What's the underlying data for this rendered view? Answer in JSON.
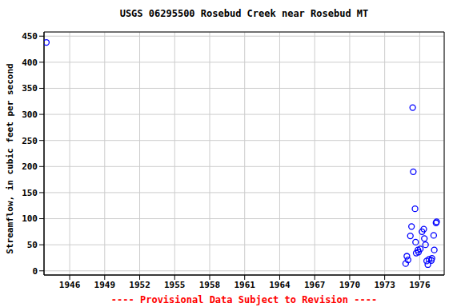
{
  "chart_data": {
    "type": "scatter",
    "title": "USGS 06295500 Rosebud Creek near Rosebud MT",
    "y_label": "Streamflow, in cubic feet per second",
    "annotation": "---- Provisional Data Subject to Revision ----",
    "x": [
      1944.0,
      1974.8,
      1974.9,
      1975.0,
      1975.2,
      1975.3,
      1975.4,
      1975.45,
      1975.6,
      1975.65,
      1975.7,
      1975.85,
      1975.9,
      1976.05,
      1976.2,
      1976.35,
      1976.4,
      1976.5,
      1976.6,
      1976.7,
      1976.8,
      1977.0,
      1977.05,
      1977.2,
      1977.25,
      1977.4,
      1977.45
    ],
    "values": [
      438,
      14,
      28,
      21,
      67,
      85,
      313,
      190,
      119,
      55,
      34,
      40,
      36,
      42,
      75,
      80,
      62,
      50,
      19,
      12,
      22,
      20,
      24,
      68,
      40,
      92,
      94
    ],
    "color": "#0000ff",
    "marker": "open_circle",
    "xlim": [
      1943.8,
      1978.1
    ],
    "ylim": [
      -8,
      458
    ],
    "xticks": [
      1946,
      1949,
      1952,
      1955,
      1958,
      1961,
      1964,
      1967,
      1970,
      1973,
      1976
    ],
    "yticks": [
      0,
      50,
      100,
      150,
      200,
      250,
      300,
      350,
      400,
      450
    ],
    "grid": true
  }
}
